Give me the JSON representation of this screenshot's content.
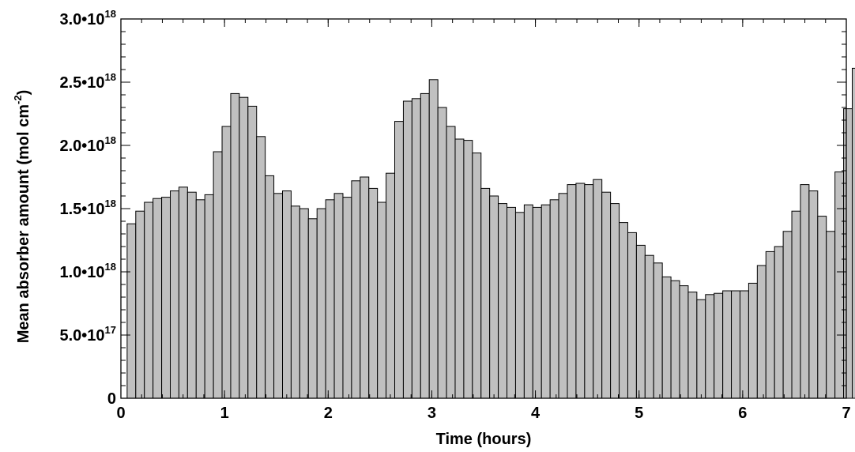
{
  "chart_data": {
    "type": "bar",
    "title": "",
    "xlabel": "Time (hours)",
    "ylabel": {
      "prefix": "Mean absorber amount (mol cm",
      "superscript": "-2",
      "suffix": ")"
    },
    "xlim": [
      0,
      7
    ],
    "ylim": [
      0,
      3e+18
    ],
    "bin_width": 0.0833,
    "bar_color": "#c0c0c0",
    "edge_color": "#000000",
    "x_ticks": [
      {
        "value": 0,
        "label": "0"
      },
      {
        "value": 1,
        "label": "1"
      },
      {
        "value": 2,
        "label": "2"
      },
      {
        "value": 3,
        "label": "3"
      },
      {
        "value": 4,
        "label": "4"
      },
      {
        "value": 5,
        "label": "5"
      },
      {
        "value": 6,
        "label": "6"
      },
      {
        "value": 7,
        "label": "7"
      }
    ],
    "y_ticks": [
      {
        "value": 0,
        "mantissa": "0",
        "exponent": ""
      },
      {
        "value": 5e+17,
        "mantissa": "5.0•10",
        "exponent": "17"
      },
      {
        "value": 1e+18,
        "mantissa": "1.0•10",
        "exponent": "18"
      },
      {
        "value": 1.5e+18,
        "mantissa": "1.5•10",
        "exponent": "18"
      },
      {
        "value": 2e+18,
        "mantissa": "2.0•10",
        "exponent": "18"
      },
      {
        "value": 2.5e+18,
        "mantissa": "2.5•10",
        "exponent": "18"
      },
      {
        "value": 3e+18,
        "mantissa": "3.0•10",
        "exponent": "18"
      }
    ],
    "x_minor_step": 0.2,
    "y_minor_step": 1e+17,
    "values": [
      1.38e+18,
      1.48e+18,
      1.55e+18,
      1.58e+18,
      1.59e+18,
      1.64e+18,
      1.67e+18,
      1.63e+18,
      1.57e+18,
      1.61e+18,
      1.95e+18,
      2.15e+18,
      2.41e+18,
      2.38e+18,
      2.31e+18,
      2.07e+18,
      1.76e+18,
      1.62e+18,
      1.64e+18,
      1.52e+18,
      1.5e+18,
      1.42e+18,
      1.5e+18,
      1.57e+18,
      1.62e+18,
      1.59e+18,
      1.72e+18,
      1.75e+18,
      1.66e+18,
      1.55e+18,
      1.78e+18,
      2.19e+18,
      2.35e+18,
      2.37e+18,
      2.41e+18,
      2.52e+18,
      2.3e+18,
      2.15e+18,
      2.05e+18,
      2.04e+18,
      1.94e+18,
      1.66e+18,
      1.6e+18,
      1.54e+18,
      1.51e+18,
      1.47e+18,
      1.53e+18,
      1.51e+18,
      1.53e+18,
      1.57e+18,
      1.62e+18,
      1.69e+18,
      1.7e+18,
      1.69e+18,
      1.73e+18,
      1.63e+18,
      1.54e+18,
      1.39e+18,
      1.31e+18,
      1.21e+18,
      1.13e+18,
      1.07e+18,
      9.6e+17,
      9.3e+17,
      8.9e+17,
      8.4e+17,
      7.8e+17,
      8.2e+17,
      8.3e+17,
      8.5e+17,
      8.5e+17,
      8.5e+17,
      9.1e+17,
      1.05e+18,
      1.16e+18,
      1.2e+18,
      1.32e+18,
      1.48e+18,
      1.69e+18,
      1.64e+18,
      1.44e+18,
      1.32e+18,
      1.79e+18,
      2.29e+18,
      2.61e+18
    ]
  }
}
